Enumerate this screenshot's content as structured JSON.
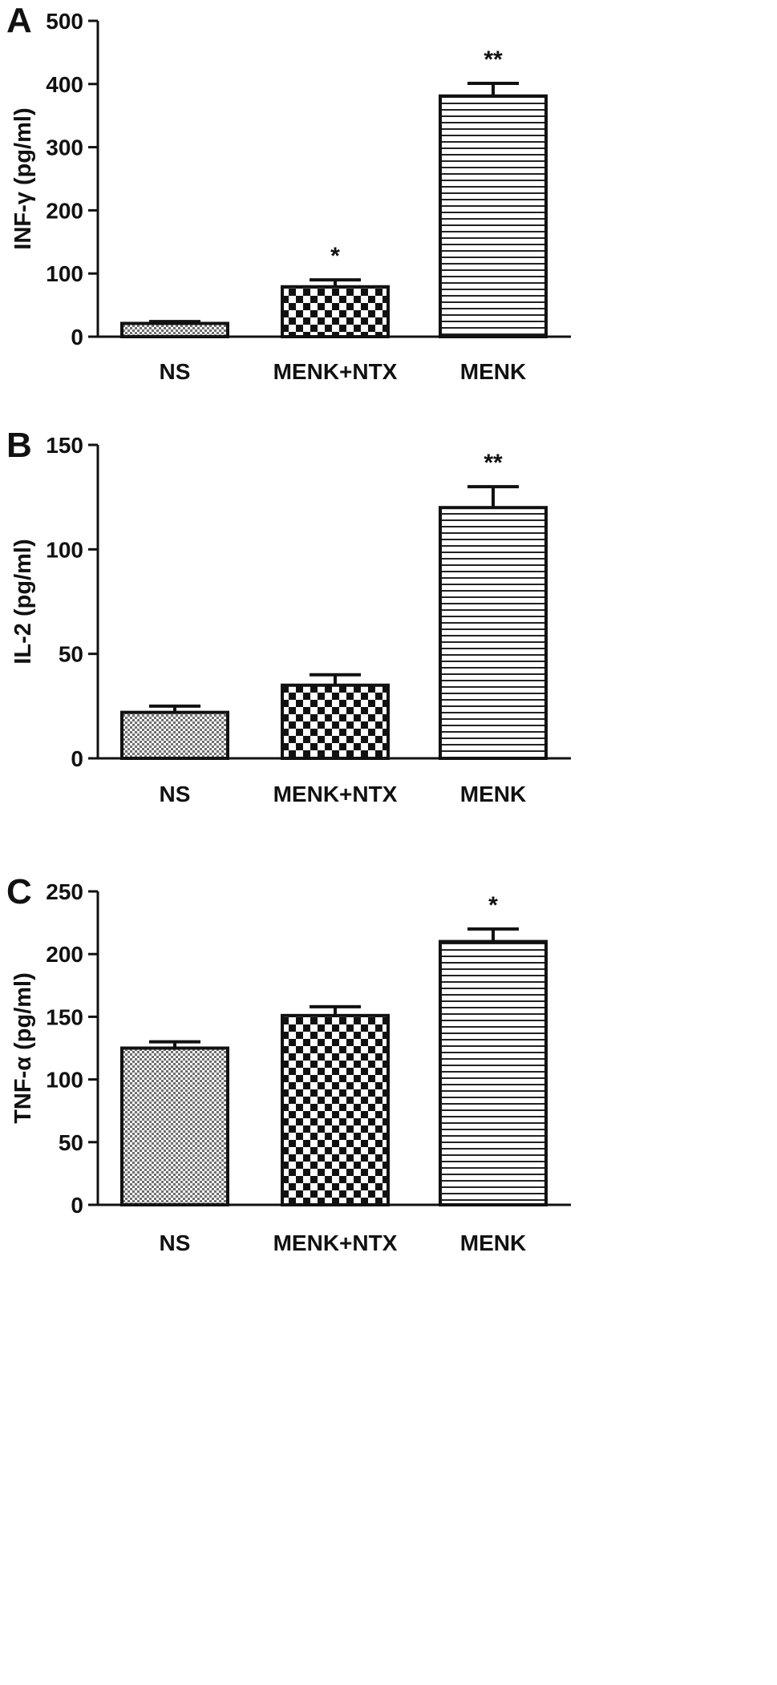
{
  "chart_data": [
    {
      "type": "bar",
      "panel_label": "A",
      "categories": [
        "NS",
        "MENK+NTX",
        "MENK"
      ],
      "values": [
        21,
        79,
        381
      ],
      "errors": [
        3,
        11,
        20
      ],
      "significance": [
        "",
        "*",
        "**"
      ],
      "patterns": [
        "fine",
        "checker",
        "hlines"
      ],
      "ylabel": "INF-γ (pg/ml)",
      "ylim": [
        0,
        500
      ],
      "yticks": [
        0,
        100,
        200,
        300,
        400,
        500
      ],
      "grid": false
    },
    {
      "type": "bar",
      "panel_label": "B",
      "categories": [
        "NS",
        "MENK+NTX",
        "MENK"
      ],
      "values": [
        22,
        35,
        120
      ],
      "errors": [
        3,
        5,
        10
      ],
      "significance": [
        "",
        "",
        "**"
      ],
      "patterns": [
        "fine",
        "checker",
        "hlines"
      ],
      "ylabel": "IL-2 (pg/ml)",
      "ylim": [
        0,
        150
      ],
      "yticks": [
        0,
        50,
        100,
        150
      ],
      "grid": false
    },
    {
      "type": "bar",
      "panel_label": "C",
      "categories": [
        "NS",
        "MENK+NTX",
        "MENK"
      ],
      "values": [
        125,
        151,
        210
      ],
      "errors": [
        5,
        7,
        10
      ],
      "significance": [
        "",
        "",
        "*"
      ],
      "patterns": [
        "fine",
        "checker",
        "hlines"
      ],
      "ylabel": "TNF-α  (pg/ml)",
      "ylim": [
        0,
        250
      ],
      "yticks": [
        0,
        50,
        100,
        150,
        200,
        250
      ],
      "grid": false
    }
  ]
}
